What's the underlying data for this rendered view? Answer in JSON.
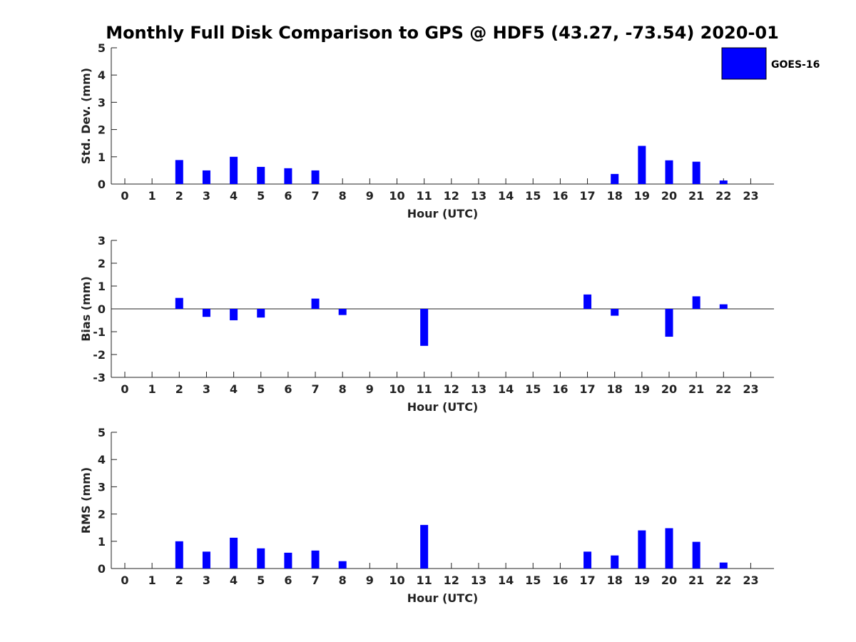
{
  "chart_data": {
    "type": "bar",
    "title": "Monthly Full Disk Comparison to GPS @ HDF5 (43.27, -73.54) 2020-01",
    "legend": {
      "label": "GOES-16",
      "position": "top-right",
      "color": "#0000ff"
    },
    "bar_color": "#0000ff",
    "x": [
      "0",
      "1",
      "2",
      "3",
      "4",
      "5",
      "6",
      "7",
      "8",
      "9",
      "10",
      "11",
      "12",
      "13",
      "14",
      "15",
      "16",
      "17",
      "18",
      "19",
      "20",
      "21",
      "22",
      "23"
    ],
    "panels": [
      {
        "id": "std",
        "ylabel": "Std. Dev. (mm)",
        "xlabel": "Hour (UTC)",
        "ylim": [
          0,
          5
        ],
        "yticks": [
          "0",
          "1",
          "2",
          "3",
          "4",
          "5"
        ],
        "values": [
          null,
          null,
          0.88,
          0.5,
          1.0,
          0.63,
          0.58,
          0.5,
          null,
          null,
          null,
          null,
          null,
          null,
          null,
          null,
          null,
          null,
          0.37,
          1.4,
          0.87,
          0.82,
          0.13,
          null
        ]
      },
      {
        "id": "bias",
        "ylabel": "Bias (mm)",
        "xlabel": "Hour (UTC)",
        "ylim": [
          -3,
          3
        ],
        "yticks": [
          "-3",
          "-2",
          "-1",
          "0",
          "1",
          "2",
          "3"
        ],
        "zero_line": true,
        "values": [
          null,
          null,
          0.48,
          -0.35,
          -0.5,
          -0.38,
          null,
          0.45,
          -0.27,
          null,
          null,
          -1.62,
          null,
          null,
          null,
          null,
          null,
          0.63,
          -0.3,
          null,
          -1.22,
          0.55,
          0.2,
          null
        ]
      },
      {
        "id": "rms",
        "ylabel": "RMS (mm)",
        "xlabel": "Hour (UTC)",
        "ylim": [
          0,
          5
        ],
        "yticks": [
          "0",
          "1",
          "2",
          "3",
          "4",
          "5"
        ],
        "values": [
          null,
          null,
          1.0,
          0.62,
          1.13,
          0.74,
          0.58,
          0.66,
          0.27,
          null,
          null,
          1.6,
          null,
          null,
          null,
          null,
          null,
          0.62,
          0.48,
          1.4,
          1.48,
          0.98,
          0.22,
          null
        ]
      }
    ]
  }
}
